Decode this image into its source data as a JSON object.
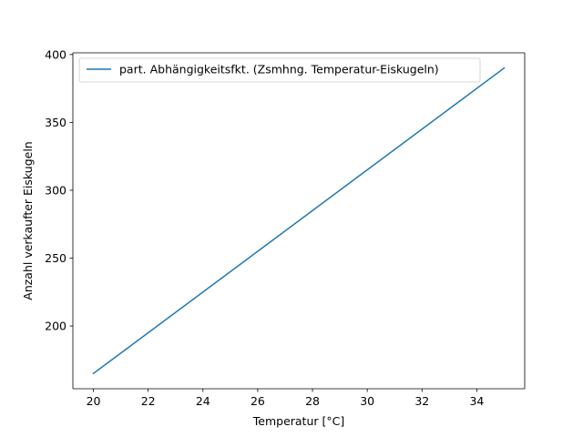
{
  "chart_data": {
    "type": "line",
    "title": "",
    "xlabel": "Temperatur [°C]",
    "ylabel": "Anzahl verkaufter Eiskugeln",
    "xlim": [
      19.25,
      35.75
    ],
    "ylim": [
      153.75,
      401.25
    ],
    "xticks": [
      20,
      22,
      24,
      26,
      28,
      30,
      32,
      34
    ],
    "yticks": [
      200,
      250,
      300,
      350,
      400
    ],
    "xtick_labels": [
      "20",
      "22",
      "24",
      "26",
      "28",
      "30",
      "32",
      "34"
    ],
    "ytick_labels": [
      "200",
      "250",
      "300",
      "350",
      "400"
    ],
    "grid": false,
    "legend_position": "upper-left",
    "series": [
      {
        "name": "part. Abhängigkeitsfkt. (Zsmhng. Temperatur-Eiskugeln)",
        "color": "#1f77b4",
        "x": [
          20,
          35
        ],
        "y": [
          165,
          390
        ]
      }
    ]
  }
}
